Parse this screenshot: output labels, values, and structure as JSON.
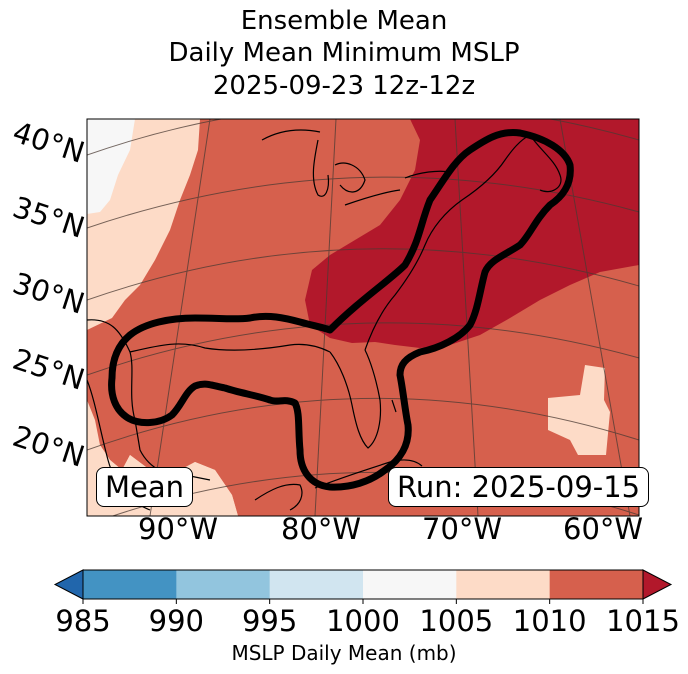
{
  "title": {
    "line1": "Ensemble Mean",
    "line2": "Daily Mean Minimum MSLP",
    "line3": "2025-09-23 12z-12z"
  },
  "map": {
    "lat_labels": [
      "40°N",
      "35°N",
      "30°N",
      "25°N",
      "20°N"
    ],
    "lon_labels": [
      "90°W",
      "80°W",
      "70°W",
      "60°W"
    ],
    "mean_label": "Mean",
    "run_label": "Run: 2025-09-15",
    "contour_level_mb": 1010
  },
  "colorbar": {
    "label": "MSLP Daily Mean (mb)",
    "ticks": [
      "985",
      "990",
      "995",
      "1000",
      "1005",
      "1010",
      "1015"
    ],
    "colors": {
      "below_985": "#2166ac",
      "985_990": "#4393c3",
      "990_995": "#92c5de",
      "995_1000": "#d1e5f0",
      "1000_1005": "#f7f7f7",
      "1005_1010": "#fddbc7",
      "1010_1015": "#d6604d",
      "above_1015": "#b2182b"
    }
  }
}
